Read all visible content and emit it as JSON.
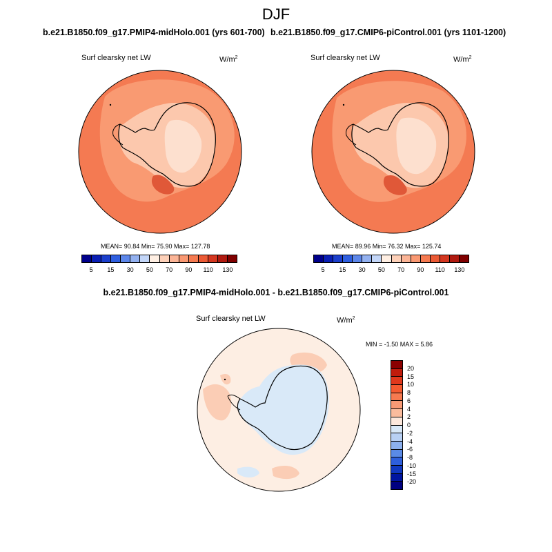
{
  "title": "DJF",
  "panels": [
    {
      "run_title": "b.e21.B1850.f09_g17.PMIP4-midHolo.001 (yrs 601-700)",
      "variable": "Surf clearsky net LW",
      "units_base": "W/m",
      "units_exp": "2",
      "stats": "MEAN=  90.84  Min=  75.90  Max= 127.78"
    },
    {
      "run_title": "b.e21.B1850.f09_g17.CMIP6-piControl.001 (yrs 1101-1200)",
      "variable": "Surf clearsky net LW",
      "units_base": "W/m",
      "units_exp": "2",
      "stats": "MEAN=  89.96  Min=  76.32  Max= 125.74"
    }
  ],
  "difference": {
    "title": "b.e21.B1850.f09_g17.PMIP4-midHolo.001 - b.e21.B1850.f09_g17.CMIP6-piControl.001",
    "variable": "Surf clearsky net LW",
    "units_base": "W/m",
    "units_exp": "2",
    "stats": "MIN =  -1.50 MAX =   5.86"
  },
  "colorbar_main": {
    "labels": [
      "5",
      "15",
      "30",
      "50",
      "70",
      "90",
      "110",
      "130"
    ],
    "colors": [
      "#00008b",
      "#0a1fb4",
      "#1c3fcc",
      "#2f5fe0",
      "#5d87ea",
      "#93b1f0",
      "#c3d6f8",
      "#ffefe3",
      "#fdd0b8",
      "#fbb496",
      "#f99872",
      "#f57a50",
      "#eb5a35",
      "#d43720",
      "#b01a10",
      "#800000"
    ]
  },
  "colorbar_diff": {
    "labels": [
      "20",
      "15",
      "10",
      "8",
      "6",
      "4",
      "2",
      "0",
      "-2",
      "-4",
      "-6",
      "-8",
      "-10",
      "-15",
      "-20"
    ],
    "colors": [
      "#8b0000",
      "#c01c0c",
      "#e0381c",
      "#f55a30",
      "#f77a50",
      "#f89a75",
      "#fbbc9d",
      "#fde8dc",
      "#d8e8f8",
      "#b8d0f4",
      "#8cb0ee",
      "#5a8ae6",
      "#2e5fdc",
      "#1038c0",
      "#0015a0",
      "#000080"
    ]
  },
  "map_colors": {
    "ocean": "#f47a52",
    "sea_ice": "#f99a72",
    "plateau": "#fcc8ad",
    "plateau_high": "#fde0cf",
    "ross_warm": "#e05838",
    "diff_base": "#fdeee3",
    "diff_warm": "#fbcdb5",
    "diff_cool": "#d9e9f8",
    "coast": "#000000"
  }
}
